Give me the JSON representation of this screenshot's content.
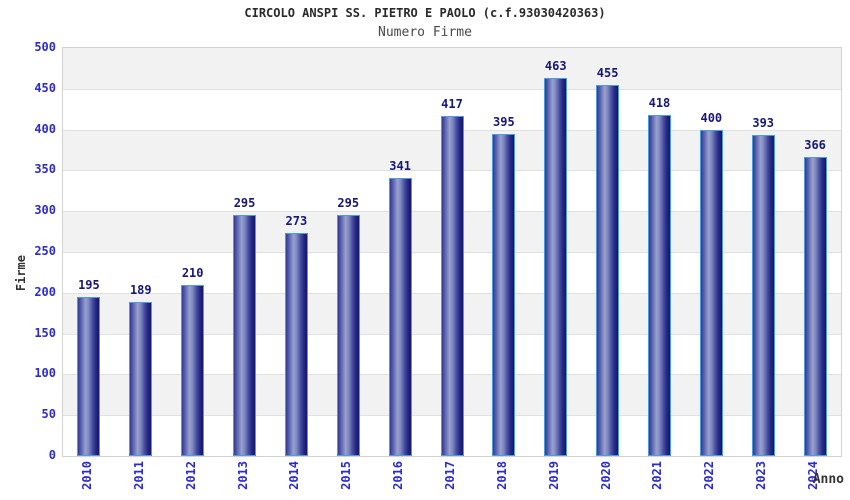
{
  "chart_data": {
    "type": "bar",
    "title": "CIRCOLO ANSPI SS. PIETRO E PAOLO (c.f.93030420363)",
    "subtitle": "Numero Firme",
    "xlabel": "Anno",
    "ylabel": "Firme",
    "categories": [
      "2010",
      "2011",
      "2012",
      "2013",
      "2014",
      "2015",
      "2016",
      "2017",
      "2018",
      "2019",
      "2020",
      "2021",
      "2022",
      "2023",
      "2024"
    ],
    "values": [
      195,
      189,
      210,
      295,
      273,
      295,
      341,
      417,
      395,
      463,
      455,
      418,
      400,
      393,
      366
    ],
    "ylim": [
      0,
      500
    ],
    "ytick_step": 50,
    "grid": true,
    "legend_position": "none",
    "band_colors": [
      "#ffffff",
      "#f2f2f2"
    ],
    "colors": {
      "axis_text": "#2b2bd0",
      "value_label": "#16167c",
      "bar_border": "#4d9be0",
      "bar_dark": "#15156e",
      "bar_mid": "#343a96",
      "bar_highlight": "#99a1d0",
      "gridline": "#e0e0e0",
      "band_gray": "#f2f2f2",
      "title_text": "#2a2a2a"
    }
  }
}
